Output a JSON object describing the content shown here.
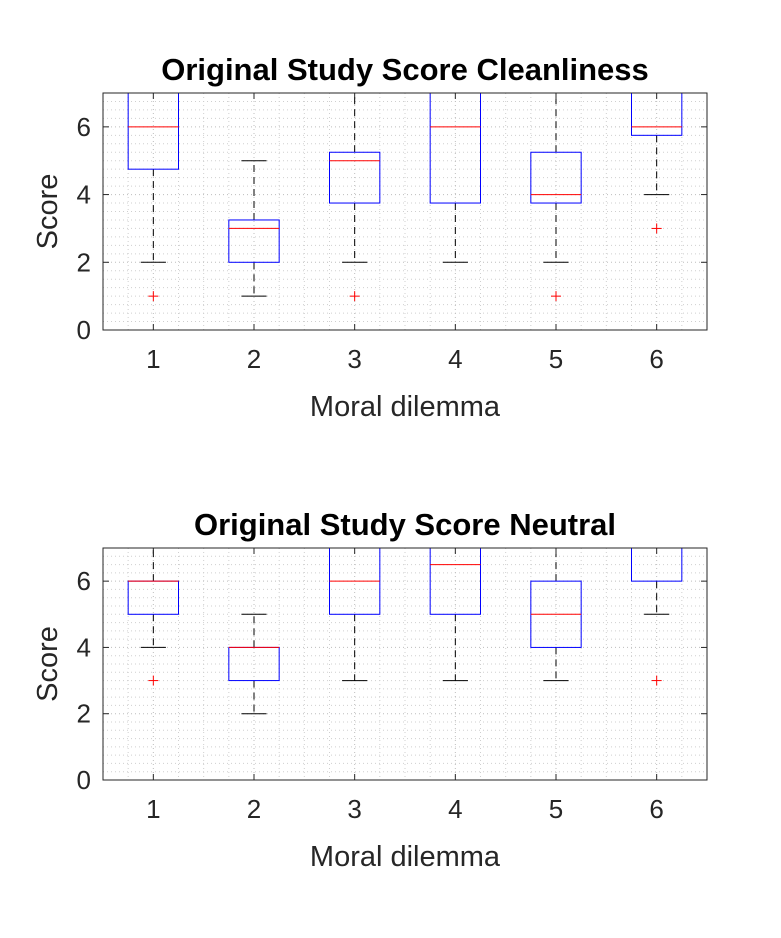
{
  "chart_data": [
    {
      "type": "boxplot",
      "title": "Original Study Score Cleanliness",
      "xlabel": "Moral dilemma",
      "ylabel": "Score",
      "ylim": [
        0,
        7
      ],
      "yticks": [
        0,
        2,
        4,
        6
      ],
      "categories": [
        "1",
        "2",
        "3",
        "4",
        "5",
        "6"
      ],
      "grid": "on (dotted, with minor grid)",
      "boxes": [
        {
          "whisker_low": 2,
          "q1": 4.75,
          "median": 6,
          "q3": 7,
          "whisker_high": 7,
          "outliers": [
            1
          ]
        },
        {
          "whisker_low": 1,
          "q1": 2,
          "median": 3,
          "q3": 3.25,
          "whisker_high": 5,
          "outliers": []
        },
        {
          "whisker_low": 2,
          "q1": 3.75,
          "median": 5,
          "q3": 5.25,
          "whisker_high": 7,
          "outliers": [
            1
          ]
        },
        {
          "whisker_low": 2,
          "q1": 3.75,
          "median": 6,
          "q3": 7,
          "whisker_high": 7,
          "outliers": []
        },
        {
          "whisker_low": 2,
          "q1": 3.75,
          "median": 4,
          "q3": 5.25,
          "whisker_high": 7,
          "outliers": [
            1
          ]
        },
        {
          "whisker_low": 4,
          "q1": 5.75,
          "median": 6,
          "q3": 7,
          "whisker_high": 7,
          "outliers": [
            3
          ]
        }
      ]
    },
    {
      "type": "boxplot",
      "title": "Original Study Score Neutral",
      "xlabel": "Moral dilemma",
      "ylabel": "Score",
      "ylim": [
        0,
        7
      ],
      "yticks": [
        0,
        2,
        4,
        6
      ],
      "categories": [
        "1",
        "2",
        "3",
        "4",
        "5",
        "6"
      ],
      "grid": "on (dotted, with minor grid)",
      "boxes": [
        {
          "whisker_low": 4,
          "q1": 5,
          "median": 6,
          "q3": 6,
          "whisker_high": 7,
          "outliers": [
            3
          ]
        },
        {
          "whisker_low": 2,
          "q1": 3,
          "median": 4,
          "q3": 4,
          "whisker_high": 5,
          "outliers": []
        },
        {
          "whisker_low": 3,
          "q1": 5,
          "median": 6,
          "q3": 7,
          "whisker_high": 7,
          "outliers": []
        },
        {
          "whisker_low": 3,
          "q1": 5,
          "median": 6.5,
          "q3": 7,
          "whisker_high": 7,
          "outliers": []
        },
        {
          "whisker_low": 3,
          "q1": 4,
          "median": 5,
          "q3": 6,
          "whisker_high": 7,
          "outliers": []
        },
        {
          "whisker_low": 5,
          "q1": 6,
          "median": 7,
          "q3": 7,
          "whisker_high": 7,
          "outliers": [
            3
          ]
        }
      ]
    }
  ],
  "colors": {
    "box": "#0000ff",
    "median": "#ff0000",
    "whisker": "#000000",
    "outlier": "#ff0000",
    "axes": "#262626",
    "grid": "#cfcfcf"
  }
}
